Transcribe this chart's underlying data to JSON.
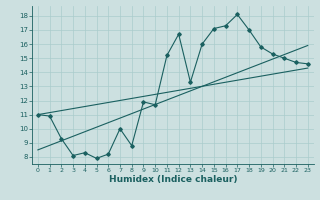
{
  "xlabel": "Humidex (Indice chaleur)",
  "bg_color": "#cce0e0",
  "grid_color": "#aacccc",
  "line_color": "#1a6060",
  "xlim": [
    -0.5,
    23.5
  ],
  "ylim": [
    7.5,
    18.7
  ],
  "xticks": [
    0,
    1,
    2,
    3,
    4,
    5,
    6,
    7,
    8,
    9,
    10,
    11,
    12,
    13,
    14,
    15,
    16,
    17,
    18,
    19,
    20,
    21,
    22,
    23
  ],
  "yticks": [
    8,
    9,
    10,
    11,
    12,
    13,
    14,
    15,
    16,
    17,
    18
  ],
  "main_x": [
    0,
    1,
    2,
    3,
    4,
    5,
    6,
    7,
    8,
    9,
    10,
    11,
    12,
    13,
    14,
    15,
    16,
    17,
    18,
    19,
    20,
    21,
    22,
    23
  ],
  "main_y": [
    11.0,
    10.9,
    9.3,
    8.1,
    8.3,
    7.9,
    8.2,
    10.0,
    8.8,
    11.9,
    11.7,
    15.2,
    16.7,
    13.3,
    16.0,
    17.1,
    17.3,
    18.1,
    17.0,
    15.8,
    15.3,
    15.0,
    14.7,
    14.6
  ],
  "line1_x": [
    0,
    23
  ],
  "line1_y": [
    11.0,
    14.3
  ],
  "line2_x": [
    0,
    23
  ],
  "line2_y": [
    8.5,
    15.9
  ]
}
